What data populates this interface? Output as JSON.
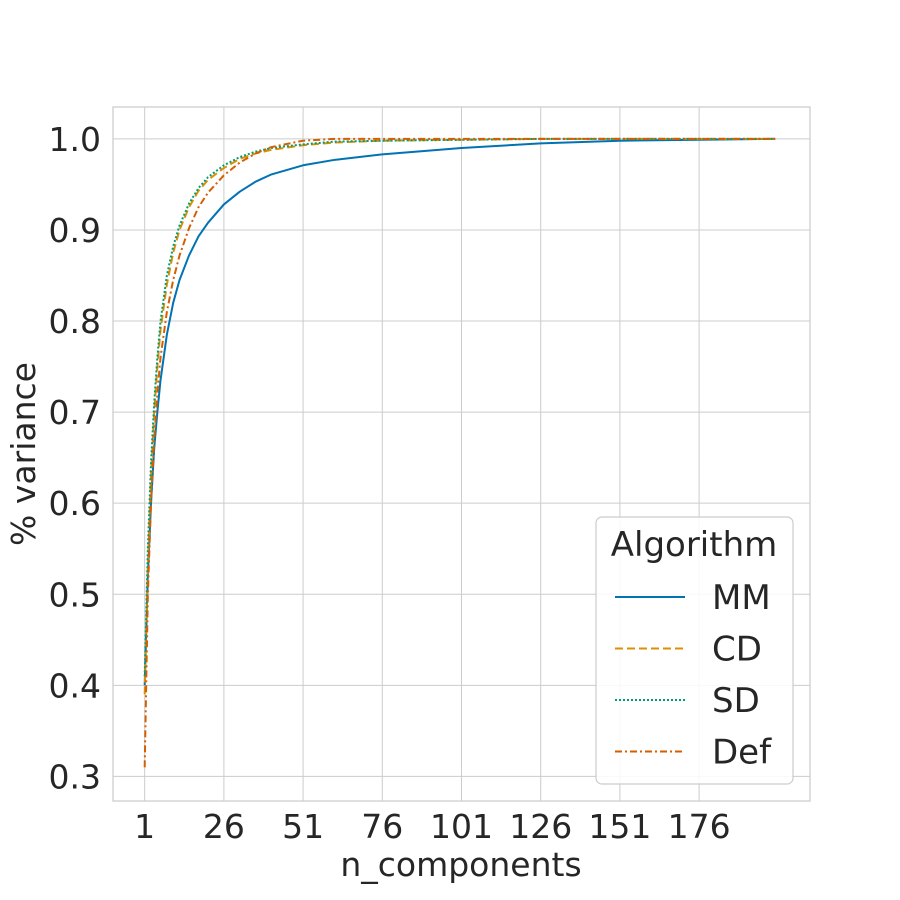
{
  "chart_data": {
    "type": "line",
    "title": "",
    "xlabel": "n_components",
    "ylabel": "% variance",
    "xlim": [
      -9,
      211
    ],
    "ylim": [
      0.273,
      1.035
    ],
    "x_ticks": [
      1,
      26,
      51,
      76,
      101,
      126,
      151,
      176
    ],
    "x_tick_labels": [
      "1",
      "26",
      "51",
      "76",
      "101",
      "126",
      "151",
      "176"
    ],
    "y_ticks": [
      0.3,
      0.4,
      0.5,
      0.6,
      0.7,
      0.8,
      0.9,
      1.0
    ],
    "y_tick_labels": [
      "0.3",
      "0.4",
      "0.5",
      "0.6",
      "0.7",
      "0.8",
      "0.9",
      "1.0"
    ],
    "grid": true,
    "legend": {
      "title": "Algorithm",
      "position": "lower-right"
    },
    "series": [
      {
        "name": "MM",
        "color": "#0173b2",
        "dash": "solid",
        "x": [
          1,
          2,
          3,
          4,
          5,
          6,
          8,
          10,
          12,
          15,
          18,
          21,
          26,
          31,
          36,
          41,
          51,
          61,
          76,
          101,
          126,
          151,
          176,
          200
        ],
        "y": [
          0.4,
          0.52,
          0.6,
          0.66,
          0.7,
          0.735,
          0.785,
          0.82,
          0.845,
          0.872,
          0.893,
          0.908,
          0.928,
          0.942,
          0.953,
          0.961,
          0.971,
          0.977,
          0.983,
          0.99,
          0.995,
          0.998,
          0.999,
          1.0
        ]
      },
      {
        "name": "CD",
        "color": "#de8f05",
        "dash": "dashed",
        "x": [
          1,
          2,
          3,
          4,
          5,
          6,
          8,
          10,
          12,
          15,
          18,
          21,
          26,
          31,
          36,
          41,
          51,
          61,
          76,
          101,
          126,
          151,
          176,
          200
        ],
        "y": [
          0.39,
          0.53,
          0.63,
          0.7,
          0.75,
          0.79,
          0.84,
          0.875,
          0.9,
          0.925,
          0.943,
          0.955,
          0.968,
          0.978,
          0.984,
          0.988,
          0.993,
          0.996,
          0.998,
          0.999,
          1.0,
          1.0,
          1.0,
          1.0
        ]
      },
      {
        "name": "SD",
        "color": "#029e73",
        "dash": "dotted",
        "x": [
          1,
          2,
          3,
          4,
          5,
          6,
          8,
          10,
          12,
          15,
          18,
          21,
          26,
          31,
          36,
          41,
          51,
          61,
          76,
          101,
          126,
          151,
          176,
          200
        ],
        "y": [
          0.41,
          0.55,
          0.645,
          0.71,
          0.76,
          0.8,
          0.85,
          0.882,
          0.905,
          0.929,
          0.946,
          0.958,
          0.971,
          0.98,
          0.986,
          0.99,
          0.994,
          0.997,
          0.998,
          0.999,
          1.0,
          1.0,
          1.0,
          1.0
        ]
      },
      {
        "name": "Def",
        "color": "#d55e00",
        "dash": "dashdot",
        "x": [
          1,
          2,
          3,
          4,
          5,
          6,
          8,
          10,
          12,
          15,
          18,
          21,
          26,
          31,
          36,
          41,
          51,
          61,
          76,
          101,
          126,
          151,
          176,
          200
        ],
        "y": [
          0.31,
          0.5,
          0.6,
          0.67,
          0.72,
          0.76,
          0.81,
          0.845,
          0.872,
          0.902,
          0.925,
          0.941,
          0.96,
          0.974,
          0.984,
          0.991,
          0.998,
          1.0,
          1.0,
          1.0,
          1.0,
          1.0,
          1.0,
          1.0
        ]
      }
    ]
  }
}
